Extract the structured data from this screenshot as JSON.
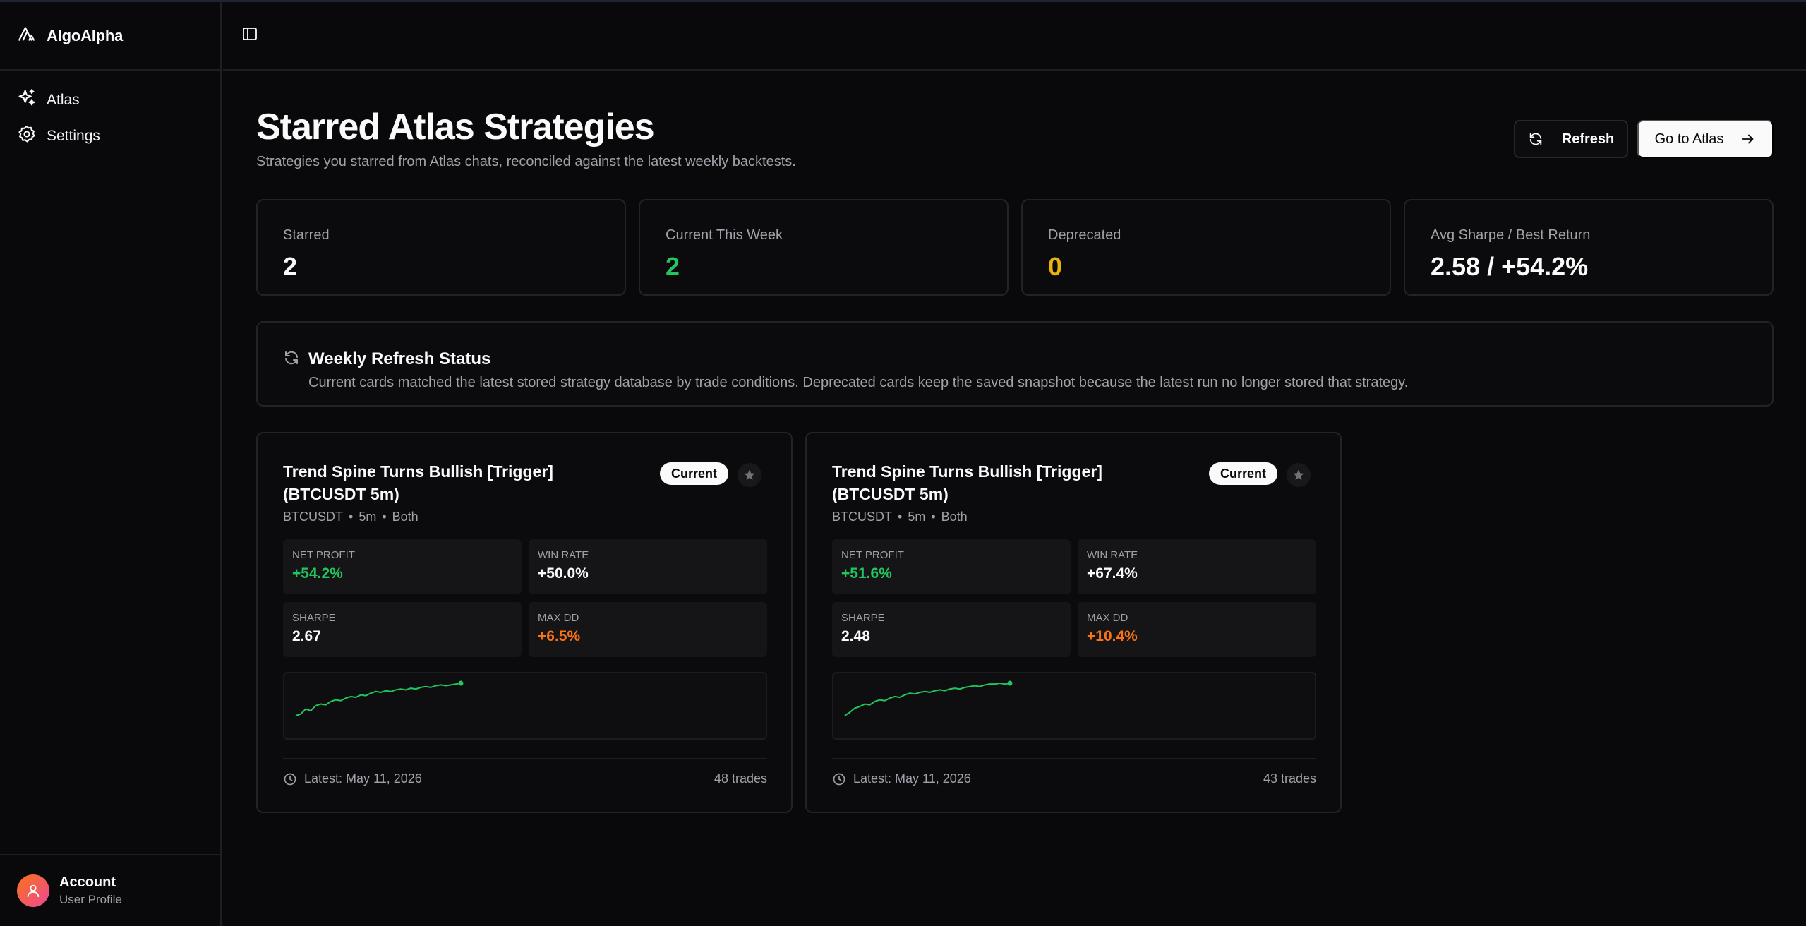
{
  "brand": {
    "name": "AlgoAlpha",
    "logo_icon": "algoalpha-logo-icon"
  },
  "sidebar": {
    "items": [
      {
        "label": "Atlas",
        "icon": "sparkles-icon"
      },
      {
        "label": "Settings",
        "icon": "gear-icon"
      }
    ],
    "account": {
      "name": "Account",
      "subtitle": "User Profile",
      "icon": "user-icon"
    }
  },
  "topbar": {
    "toggle_icon": "sidebar-toggle-icon"
  },
  "page": {
    "title": "Starred Atlas Strategies",
    "subtitle": "Strategies you starred from Atlas chats, reconciled against the latest weekly backtests.",
    "refresh_label": "Refresh",
    "go_atlas_label": "Go to Atlas"
  },
  "stats": [
    {
      "label": "Starred",
      "value": "2",
      "color": "#fafafa"
    },
    {
      "label": "Current This Week",
      "value": "2",
      "color": "#22c55e"
    },
    {
      "label": "Deprecated",
      "value": "0",
      "color": "#eab308"
    },
    {
      "label": "Avg Sharpe / Best Return",
      "value": "2.58 / +54.2%",
      "color": "#fafafa"
    }
  ],
  "status": {
    "title": "Weekly Refresh Status",
    "description": "Current cards matched the latest stored strategy database by trade conditions. Deprecated cards keep the saved snapshot because the latest run no longer stored that strategy."
  },
  "cards": [
    {
      "title": "Trend Spine Turns Bullish [Trigger] (BTCUSDT 5m)",
      "badge": "Current",
      "meta": {
        "symbol": "BTCUSDT",
        "timeframe": "5m",
        "direction": "Both",
        "separator": "•"
      },
      "metrics": {
        "net_profit": {
          "label": "NET PROFIT",
          "value": "+54.2%"
        },
        "win_rate": {
          "label": "WIN RATE",
          "value": "+50.0%"
        },
        "sharpe": {
          "label": "SHARPE",
          "value": "2.67"
        },
        "max_dd": {
          "label": "MAX DD",
          "value": "+6.5%"
        }
      },
      "equity_curve": [
        0,
        2,
        8,
        6,
        12,
        14,
        13,
        17,
        19,
        18,
        21,
        23,
        22,
        25,
        24,
        27,
        29,
        28,
        30,
        29,
        31,
        32,
        31,
        33,
        32,
        34,
        35,
        34,
        36,
        37,
        36,
        37,
        38,
        39
      ],
      "latest": "Latest: May 11, 2026",
      "trades": "48 trades"
    },
    {
      "title": "Trend Spine Turns Bullish [Trigger] (BTCUSDT 5m)",
      "badge": "Current",
      "meta": {
        "symbol": "BTCUSDT",
        "timeframe": "5m",
        "direction": "Both",
        "separator": "•"
      },
      "metrics": {
        "net_profit": {
          "label": "NET PROFIT",
          "value": "+51.6%"
        },
        "win_rate": {
          "label": "WIN RATE",
          "value": "+67.4%"
        },
        "sharpe": {
          "label": "SHARPE",
          "value": "2.48"
        },
        "max_dd": {
          "label": "MAX DD",
          "value": "+10.4%"
        }
      },
      "equity_curve": [
        0,
        4,
        9,
        11,
        14,
        13,
        17,
        19,
        18,
        21,
        23,
        22,
        25,
        27,
        26,
        28,
        29,
        28,
        30,
        31,
        30,
        32,
        33,
        32,
        34,
        35,
        36,
        35,
        37,
        38,
        38,
        39,
        38,
        39
      ],
      "latest": "Latest: May 11, 2026",
      "trades": "43 trades"
    }
  ]
}
